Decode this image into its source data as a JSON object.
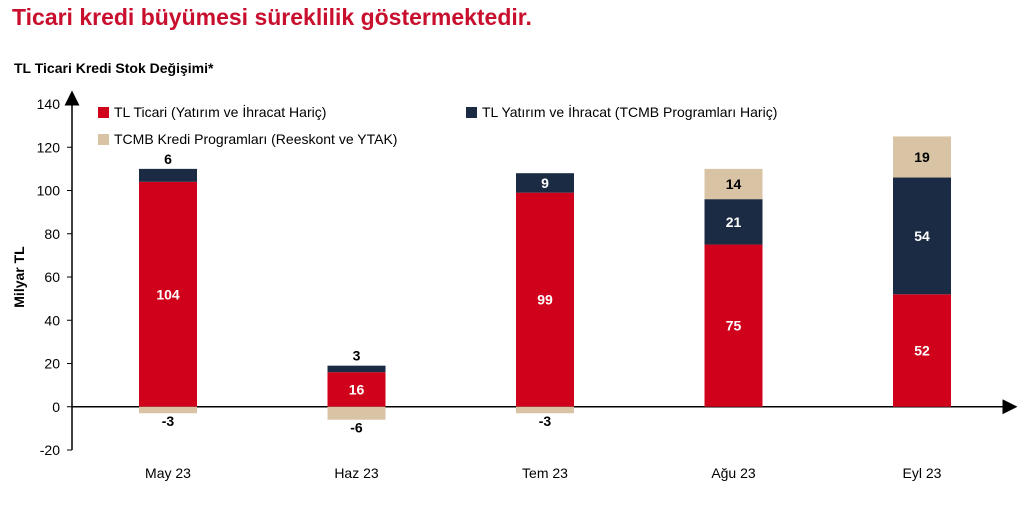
{
  "headline": "Ticari kredi büyümesi süreklilik göstermektedir.",
  "chart_data": {
    "type": "bar",
    "stacked": true,
    "title": "TL Ticari Kredi Stok Değişimi*",
    "xlabel": "",
    "ylabel": "Milyar TL",
    "ylim": [
      -20,
      140
    ],
    "yticks": [
      140,
      120,
      100,
      80,
      60,
      40,
      20,
      0,
      -20
    ],
    "grid": false,
    "legend_position": "top",
    "categories": [
      "May 23",
      "Haz 23",
      "Tem 23",
      "Ağu 23",
      "Eyl 23"
    ],
    "series": [
      {
        "name": "TL Ticari (Yatırım ve İhracat Hariç)",
        "color": "#d0021b",
        "label_color": "#ffffff",
        "values": [
          104,
          16,
          99,
          75,
          52
        ]
      },
      {
        "name": "TL Yatırım ve İhracat (TCMB Programları Hariç)",
        "color": "#1c2b44",
        "label_color": "#ffffff",
        "values": [
          6,
          3,
          9,
          21,
          54
        ]
      },
      {
        "name": "TCMB Kredi Programları (Reeskont ve YTAK)",
        "color": "#d8c3a5",
        "label_color": "#000000",
        "values": [
          -3,
          -6,
          -3,
          14,
          19
        ]
      }
    ]
  }
}
